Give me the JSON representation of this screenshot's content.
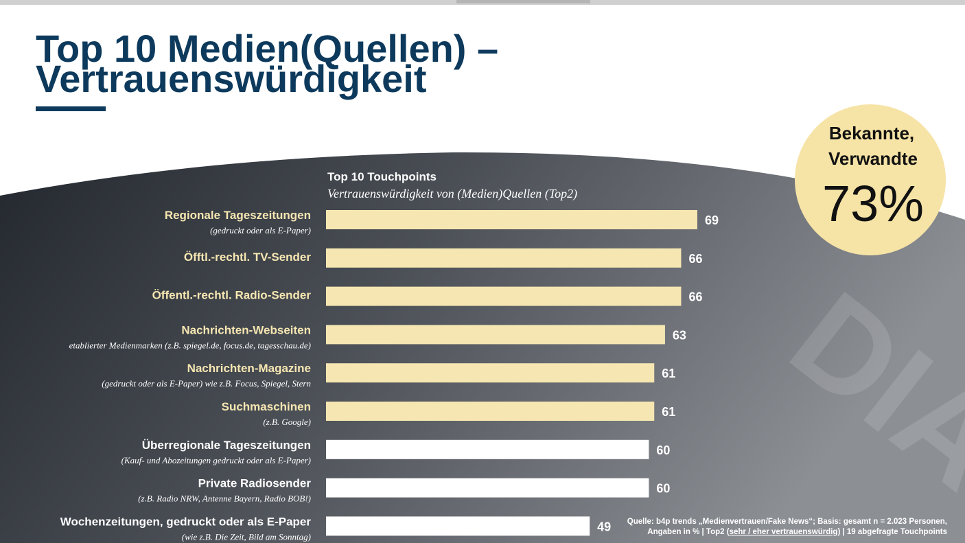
{
  "header": {
    "title_lines": [
      "Top 10 Medien(Quellen) –",
      "Vertrauenswürdigkeit"
    ]
  },
  "chart_data": {
    "type": "bar",
    "orientation": "horizontal",
    "title": "Top 10 Touchpoints",
    "subtitle": "Vertrauenswürdigkeit von (Medien)Quellen (Top2)",
    "categories": [
      "Regionale Tageszeitungen",
      "Öfftl.-rechtl. TV-Sender",
      "Öffentl.-rechtl. Radio-Sender",
      "Nachrichten-Webseiten",
      "Nachrichten-Magazine",
      "Suchmaschinen",
      "Überregionale Tageszeitungen",
      "Private Radiosender",
      "Wochenzeitungen, gedruckt oder als E-Paper"
    ],
    "sublabels": [
      "(gedruckt oder als E-Paper)",
      null,
      null,
      "etablierter Medienmarken (z.B. spiegel.de, focus.de, tagesschau.de)",
      "(gedruckt oder als E-Paper) wie z.B. Focus, Spiegel, Stern",
      "(z.B. Google)",
      "(Kauf- und Abozeitungen gedruckt oder als E-Paper)",
      "(z.B. Radio NRW, Antenne Bayern, Radio BOB!)",
      "(wie z.B. Die Zeit, Bild am Sonntag)"
    ],
    "values": [
      69,
      66,
      66,
      63,
      61,
      61,
      60,
      60,
      49
    ],
    "colors": [
      "#f6e7b2",
      "#f6e7b2",
      "#f6e7b2",
      "#f6e7b2",
      "#f6e7b2",
      "#f6e7b2",
      "#ffffff",
      "#ffffff",
      "#ffffff"
    ]
  },
  "callout": {
    "lines": [
      "Bekannte,",
      "Verwandte"
    ],
    "value": "73%"
  },
  "source": {
    "line1": "Quelle: b4p trends „Medienvertrauen/Fake News“; Basis: gesamt n = 2.023 Personen,",
    "line2_parts": [
      "Angaben in % | Top2 (",
      "sehr / eher vertrauenswürdig",
      ") | 19 abgefragte Touchpoints"
    ]
  }
}
